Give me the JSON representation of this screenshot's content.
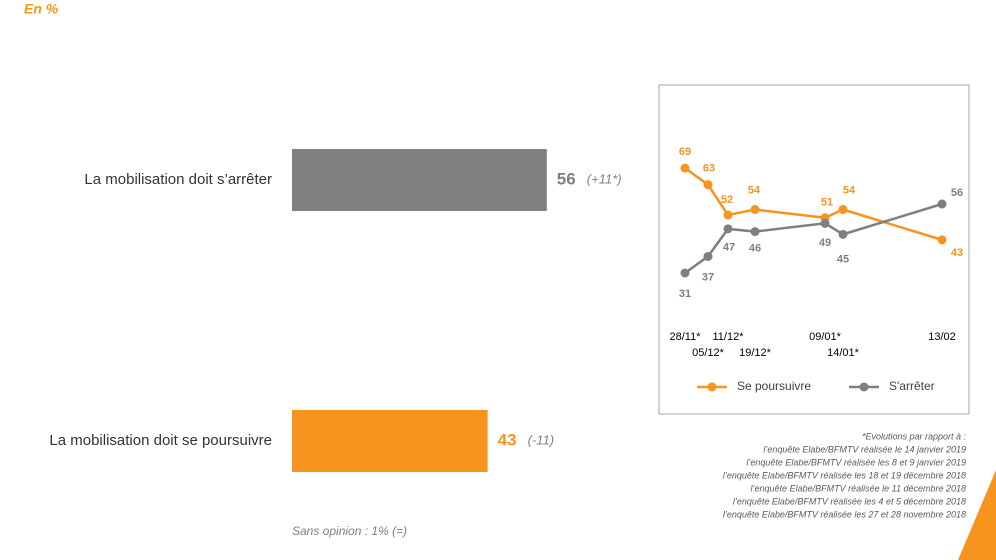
{
  "header": {
    "unit_note": "En %"
  },
  "chart_data": [
    {
      "type": "hbar",
      "categories": [
        "La mobilisation doit s’arrêter",
        "La mobilisation doit se poursuivre"
      ],
      "values": [
        56,
        43
      ],
      "change_labels": [
        "(+11*)",
        "(-11)"
      ],
      "colors": [
        "#808080",
        "#f7941d"
      ],
      "footnote": "Sans opinion : 1% (=)"
    },
    {
      "type": "line",
      "categories": [
        "28/11*",
        "05/12*",
        "11/12*",
        "19/12*",
        "09/01*",
        "14/01*",
        "13/02"
      ],
      "series": [
        {
          "name": "Se poursuivre",
          "color": "#f7941d",
          "values": [
            69,
            63,
            52,
            54,
            51,
            54,
            43
          ]
        },
        {
          "name": "S'arrêter",
          "color": "#7f7f7f",
          "values": [
            31,
            37,
            47,
            46,
            49,
            45,
            56
          ]
        }
      ],
      "legend": "bottom"
    }
  ],
  "notes": {
    "title": "*Evolutions par rapport à :",
    "lines": [
      "l’enquête Elabe/BFMTV réalisée le 14 janvier 2019",
      "l’enquête Elabe/BFMTV réalisée les 8 et 9 janvier 2019",
      "l’enquête Elabe/BFMTV réalisée les 18 et 19 décembre 2018",
      "l’enquête Elabe/BFMTV réalisée le 11 décembre 2018",
      "l’enquête Elabe/BFMTV réalisée les 4 et 5 décembre 2018",
      "l’enquête Elabe/BFMTV réalisée les 27 et 28 novembre 2018"
    ]
  }
}
